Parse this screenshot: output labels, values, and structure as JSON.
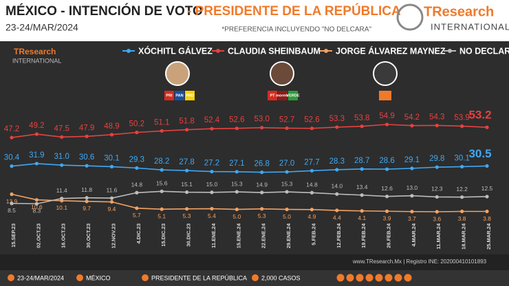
{
  "header": {
    "title_main": "MÉXICO - INTENCIÓN DE VOTO",
    "title_accent": "- PRESIDENTE DE LA REPÚBLICA",
    "date": "23-24/MAR/2024",
    "note": "*PREFERENCIA INCLUYENDO \"NO DELCARA\"",
    "logo_name": "TResearch",
    "logo_sub": "INTERNATIONAL"
  },
  "parties": {
    "galvez": [
      "PRI",
      "PAN",
      "PRD"
    ],
    "sheinbaum": [
      "PT",
      "morena",
      "VERDE"
    ]
  },
  "chart_data": {
    "type": "line",
    "categories": [
      "15.SEP.23",
      "02.OCT.23",
      "16.OCT.23",
      "30.OCT.23",
      "12.NOV.23",
      "4.DIC.23",
      "15.DIC.23",
      "30.DIC.23",
      "11.ENE.24",
      "15.ENE.24",
      "22.ENE.24",
      "29.ENE.24",
      "5.FEB.24",
      "12.FEB.24",
      "19.FEB.24",
      "26.FEB.24",
      "4.MAR.24",
      "11.MAR.24",
      "18.MAR.24",
      "25.MAR.24"
    ],
    "series": [
      {
        "name": "XÓCHITL GÁLVEZ",
        "color": "#3fa9f5",
        "values": [
          30.4,
          31.9,
          31.0,
          30.6,
          30.1,
          29.3,
          28.2,
          27.8,
          27.2,
          27.1,
          26.8,
          27.0,
          27.7,
          28.3,
          28.7,
          28.6,
          29.1,
          29.8,
          30.1,
          30.5
        ],
        "value_labels": [
          "30.4",
          "31.9",
          "31.0",
          "30.6",
          "30.1",
          "29.3",
          "28.2",
          "27.8",
          "27.2",
          "27.1",
          "26.8",
          "27.0",
          "27.7",
          "28.3",
          "28.7",
          "28.6",
          "29.1",
          "29.8",
          "30.1",
          "30.5"
        ]
      },
      {
        "name": "CLAUDIA SHEINBAUM",
        "color": "#e8413e",
        "values": [
          47.2,
          49.2,
          47.5,
          47.9,
          48.9,
          50.2,
          51.1,
          51.8,
          52.4,
          52.6,
          53.0,
          52.7,
          52.6,
          53.3,
          53.8,
          54.9,
          54.2,
          54.3,
          53.9,
          53.2
        ],
        "value_labels": [
          "47.2",
          "49.2",
          "47.5",
          "47.9",
          "48.9",
          "50.2",
          "51.1",
          "51.8",
          "52.4",
          "52.6",
          "53.0",
          "52.7",
          "52.6",
          "53.3",
          "53.8",
          "54.9",
          "54.2",
          "54.3",
          "53.9",
          "53.2"
        ]
      },
      {
        "name": "JORGE ÁLVAREZ MAYNEZ",
        "color": "#f4a261",
        "values": [
          13.9,
          10.6,
          10.1,
          9.7,
          9.4,
          5.7,
          5.1,
          5.3,
          5.4,
          5.0,
          5.3,
          5.0,
          4.9,
          4.4,
          4.1,
          3.9,
          3.7,
          3.6,
          3.8,
          3.8
        ],
        "value_labels": [
          "13.9",
          "10.6",
          "10.1",
          "9.7",
          "9.4",
          "5.7",
          "5.1",
          "5.3",
          "5.4",
          "5.0",
          "5.3",
          "5.0",
          "4.9",
          "4.4",
          "4.1",
          "3.9",
          "3.7",
          "3.6",
          "3.8",
          "3.8"
        ]
      },
      {
        "name": "NO DECLARA",
        "color": "#bdbdbd",
        "values": [
          8.5,
          8.3,
          11.4,
          11.8,
          11.6,
          14.8,
          15.6,
          15.1,
          15.0,
          15.3,
          14.9,
          15.3,
          14.8,
          14.0,
          13.4,
          12.6,
          13.0,
          12.3,
          12.2,
          12.5
        ],
        "value_labels": [
          "8.5",
          "8.3",
          "11.4",
          "11.8",
          "11.6",
          "14.8",
          "15.6",
          "15.1",
          "15.0",
          "15.3",
          "14.9",
          "15.3",
          "14.8",
          "14.0",
          "13.4",
          "12.6",
          "13.0",
          "12.3",
          "12.2",
          "12.5"
        ]
      }
    ]
  },
  "footer": {
    "credit": "www.TResearch.Mx | Registro INE: 202000410101893",
    "items": [
      "23-24/MAR/2024",
      "MÉXICO",
      "PRESIDENTE DE LA REPÚBLICA",
      "2,000 CASOS"
    ]
  }
}
